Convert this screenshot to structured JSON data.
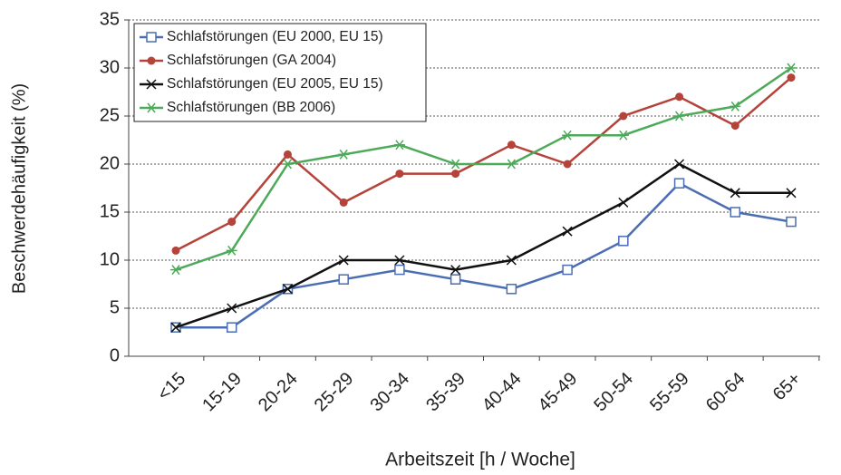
{
  "chart_data": {
    "type": "line",
    "x_label": "Arbeitszeit [h / Woche]",
    "y_label": "Beschwerdehäufigkeit (%)",
    "categories": [
      "<15",
      "15-19",
      "20-24",
      "25-29",
      "30-34",
      "35-39",
      "40-44",
      "45-49",
      "50-54",
      "55-59",
      "60-64",
      "65+"
    ],
    "series": [
      {
        "name": "Schlafstörungen (EU 2000, EU 15)",
        "color": "#4a6db3",
        "marker": "square",
        "values": [
          3,
          3,
          7,
          8,
          9,
          8,
          7,
          9,
          12,
          18,
          15,
          14
        ]
      },
      {
        "name": "Schlafstörungen (GA 2004)",
        "color": "#b5433a",
        "marker": "circle",
        "values": [
          11,
          14,
          21,
          16,
          19,
          19,
          22,
          20,
          25,
          27,
          24,
          29
        ]
      },
      {
        "name": "Schlafstörungen (EU 2005, EU 15)",
        "color": "#111111",
        "marker": "cross",
        "values": [
          3,
          5,
          7,
          10,
          10,
          9,
          10,
          13,
          16,
          20,
          17,
          17
        ]
      },
      {
        "name": "Schlafstörungen (BB 2006)",
        "color": "#4caa58",
        "marker": "star",
        "values": [
          9,
          11,
          20,
          21,
          22,
          20,
          20,
          23,
          23,
          25,
          26,
          30
        ]
      }
    ],
    "ylim": [
      0,
      35
    ],
    "yticks": [
      0,
      5,
      10,
      15,
      20,
      25,
      30,
      35
    ],
    "grid": true,
    "legend": "upper left"
  }
}
